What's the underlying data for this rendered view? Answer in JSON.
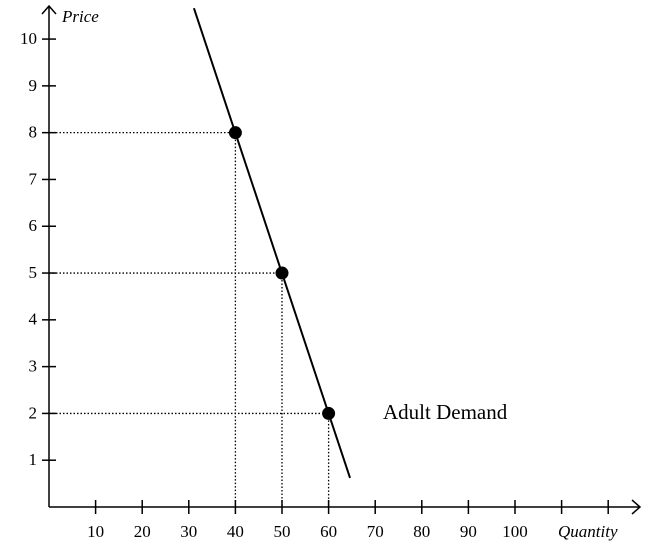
{
  "chart_data": {
    "type": "line",
    "x_label": "Quantity",
    "y_label": "Price",
    "annotation": "Adult Demand",
    "xlim": [
      0,
      125
    ],
    "ylim": [
      0,
      10.6
    ],
    "xticks": [
      10,
      20,
      30,
      40,
      50,
      60,
      70,
      80,
      90,
      100,
      {
        "value": 110,
        "label": null
      },
      {
        "value": 120,
        "label": null
      }
    ],
    "yticks": [
      1,
      2,
      3,
      4,
      5,
      6,
      7,
      8,
      9,
      10
    ],
    "line": {
      "color": "#000000",
      "x": [
        31.1,
        64.6
      ],
      "values": [
        10.66,
        0.62
      ]
    },
    "points": {
      "color": "#000000",
      "x": [
        40,
        50,
        60
      ],
      "values": [
        8,
        5,
        2
      ]
    },
    "guides": true
  }
}
